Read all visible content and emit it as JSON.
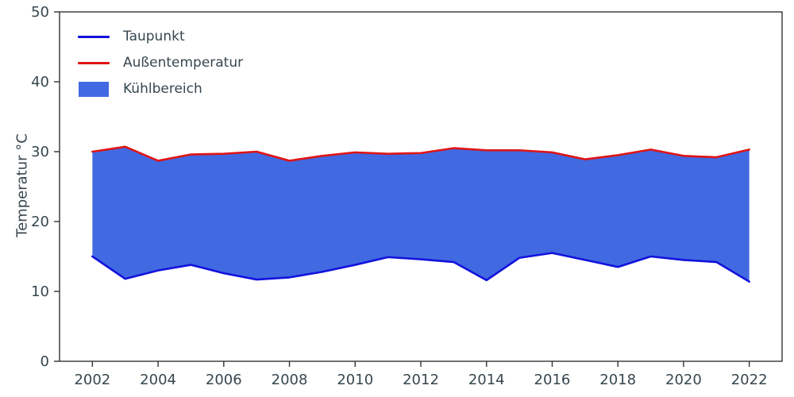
{
  "colors": {
    "taupunkt": "#1212dd",
    "aussentemperatur": "#e01414",
    "fill": "#4169e1",
    "axis": "#333333",
    "text": "#37474f",
    "background": "#ffffff"
  },
  "legend": {
    "taupunkt_label": "Taupunkt",
    "aussentemperatur_label": "Außentemperatur",
    "kuehlbereich_label": "Kühlbereich"
  },
  "chart_data": {
    "type": "area",
    "title": "",
    "xlabel": "",
    "ylabel": "Temperatur °C",
    "xlim": [
      2001,
      2023
    ],
    "ylim": [
      0,
      50
    ],
    "xticks": [
      2002,
      2004,
      2006,
      2008,
      2010,
      2012,
      2014,
      2016,
      2018,
      2020,
      2022
    ],
    "yticks": [
      0,
      10,
      20,
      30,
      40,
      50
    ],
    "grid": false,
    "legend_position": "upper left",
    "x": [
      2002,
      2003,
      2004,
      2005,
      2006,
      2007,
      2008,
      2009,
      2010,
      2011,
      2012,
      2013,
      2014,
      2015,
      2016,
      2017,
      2018,
      2019,
      2020,
      2021,
      2022
    ],
    "series": [
      {
        "name": "Taupunkt",
        "color_key": "taupunkt",
        "values": [
          15.0,
          11.8,
          13.0,
          13.8,
          12.6,
          11.7,
          12.0,
          12.8,
          13.8,
          14.9,
          14.6,
          14.2,
          11.6,
          14.8,
          15.5,
          14.5,
          13.5,
          15.0,
          14.5,
          14.2,
          11.4
        ]
      },
      {
        "name": "Außentemperatur",
        "color_key": "aussentemperatur",
        "values": [
          30.0,
          30.7,
          28.7,
          29.6,
          29.7,
          30.0,
          28.7,
          29.4,
          29.9,
          29.7,
          29.8,
          30.5,
          30.2,
          30.2,
          29.9,
          28.9,
          29.5,
          30.3,
          29.4,
          29.2,
          30.3
        ]
      }
    ],
    "fill_between": {
      "name": "Kühlbereich",
      "lower_series": "Taupunkt",
      "upper_series": "Außentemperatur",
      "color_key": "fill"
    }
  }
}
